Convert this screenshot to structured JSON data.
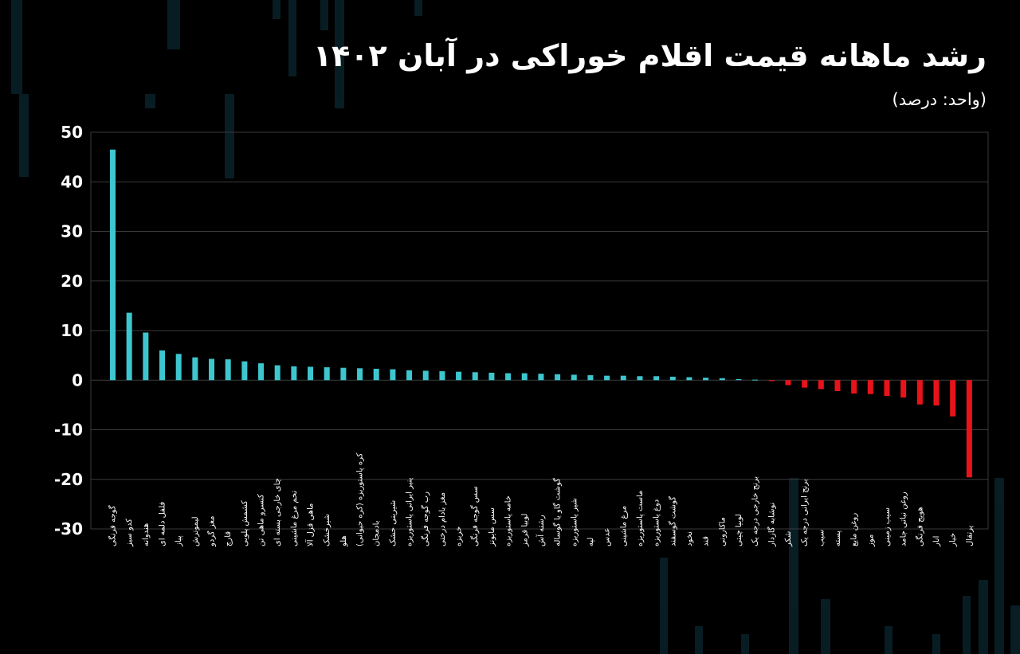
{
  "title": "رشد ماهانه قیمت اقلام خوراکی در آبان ۱۴۰۲",
  "subtitle": "(واحد: درصد)",
  "colors": {
    "background": "#000000",
    "positive": "#3ec6cf",
    "negative": "#e8131a",
    "grid": "#3a3a3a",
    "text": "#ffffff"
  },
  "chart_data": {
    "type": "bar",
    "ylim": [
      -30,
      50
    ],
    "yticks": [
      50,
      40,
      30,
      20,
      10,
      0,
      -10,
      -20,
      -30
    ],
    "ytick_labels": [
      "50",
      "40",
      "30",
      "20",
      "10",
      "0",
      "-10",
      "-20",
      "-30"
    ],
    "grid": true,
    "categories": [
      "گوجه فرنگی",
      "کدو سبز",
      "هندوانه",
      "فلفل دلمه ای",
      "پیاز",
      "لیموترش",
      "مغز گردو",
      "قارچ",
      "کشمش پلویی",
      "کنسرو ماهی تن",
      "چای خارجی بسته ای",
      "تخم مرغ ماشینی",
      "ماهی قزل آلا",
      "شیرخشک",
      "هلو",
      "کره پاستوریزه (کره حیوانی)",
      "بادمجان",
      "شیرینی خشک",
      "پنیر ایرانی پاستوریزه",
      "رب گوجه فرنگی",
      "مغز بادام درختی",
      "خربزه",
      "سس گوجه فرنگی",
      "سس مایونز",
      "خامه پاستوریزه",
      "لوبیا قرمز",
      "رشته آش",
      "گوشت گاو یا گوساله",
      "شیر پاستوریزه",
      "لپه",
      "عدس",
      "مرغ ماشینی",
      "ماست پاستوریزه",
      "دوغ پاستوریزه",
      "گوشت گوسفند",
      "نخود",
      "قند",
      "ماکارونی",
      "لوبیا چیتی",
      "برنج خارجی درجه یک",
      "نوشابه گازدار",
      "شکر",
      "برنج ایرانی درجه یک",
      "سیب",
      "پسته",
      "روغن مایع",
      "موز",
      "سیب زمینی",
      "روغن نباتی جامد",
      "هویج فرنگی",
      "انار",
      "خیار",
      "پرتقال"
    ],
    "values": [
      46.5,
      13.6,
      9.6,
      6.0,
      5.3,
      4.6,
      4.3,
      4.2,
      3.8,
      3.4,
      3.0,
      2.8,
      2.7,
      2.6,
      2.5,
      2.4,
      2.3,
      2.2,
      2.0,
      1.9,
      1.8,
      1.7,
      1.6,
      1.5,
      1.4,
      1.4,
      1.3,
      1.2,
      1.1,
      1.0,
      0.9,
      0.9,
      0.8,
      0.8,
      0.7,
      0.6,
      0.5,
      0.4,
      0.2,
      0.1,
      -0.2,
      -1.0,
      -1.5,
      -1.8,
      -2.2,
      -2.7,
      -2.8,
      -3.2,
      -3.5,
      -4.9,
      -5.1,
      -7.3,
      -19.6
    ]
  }
}
